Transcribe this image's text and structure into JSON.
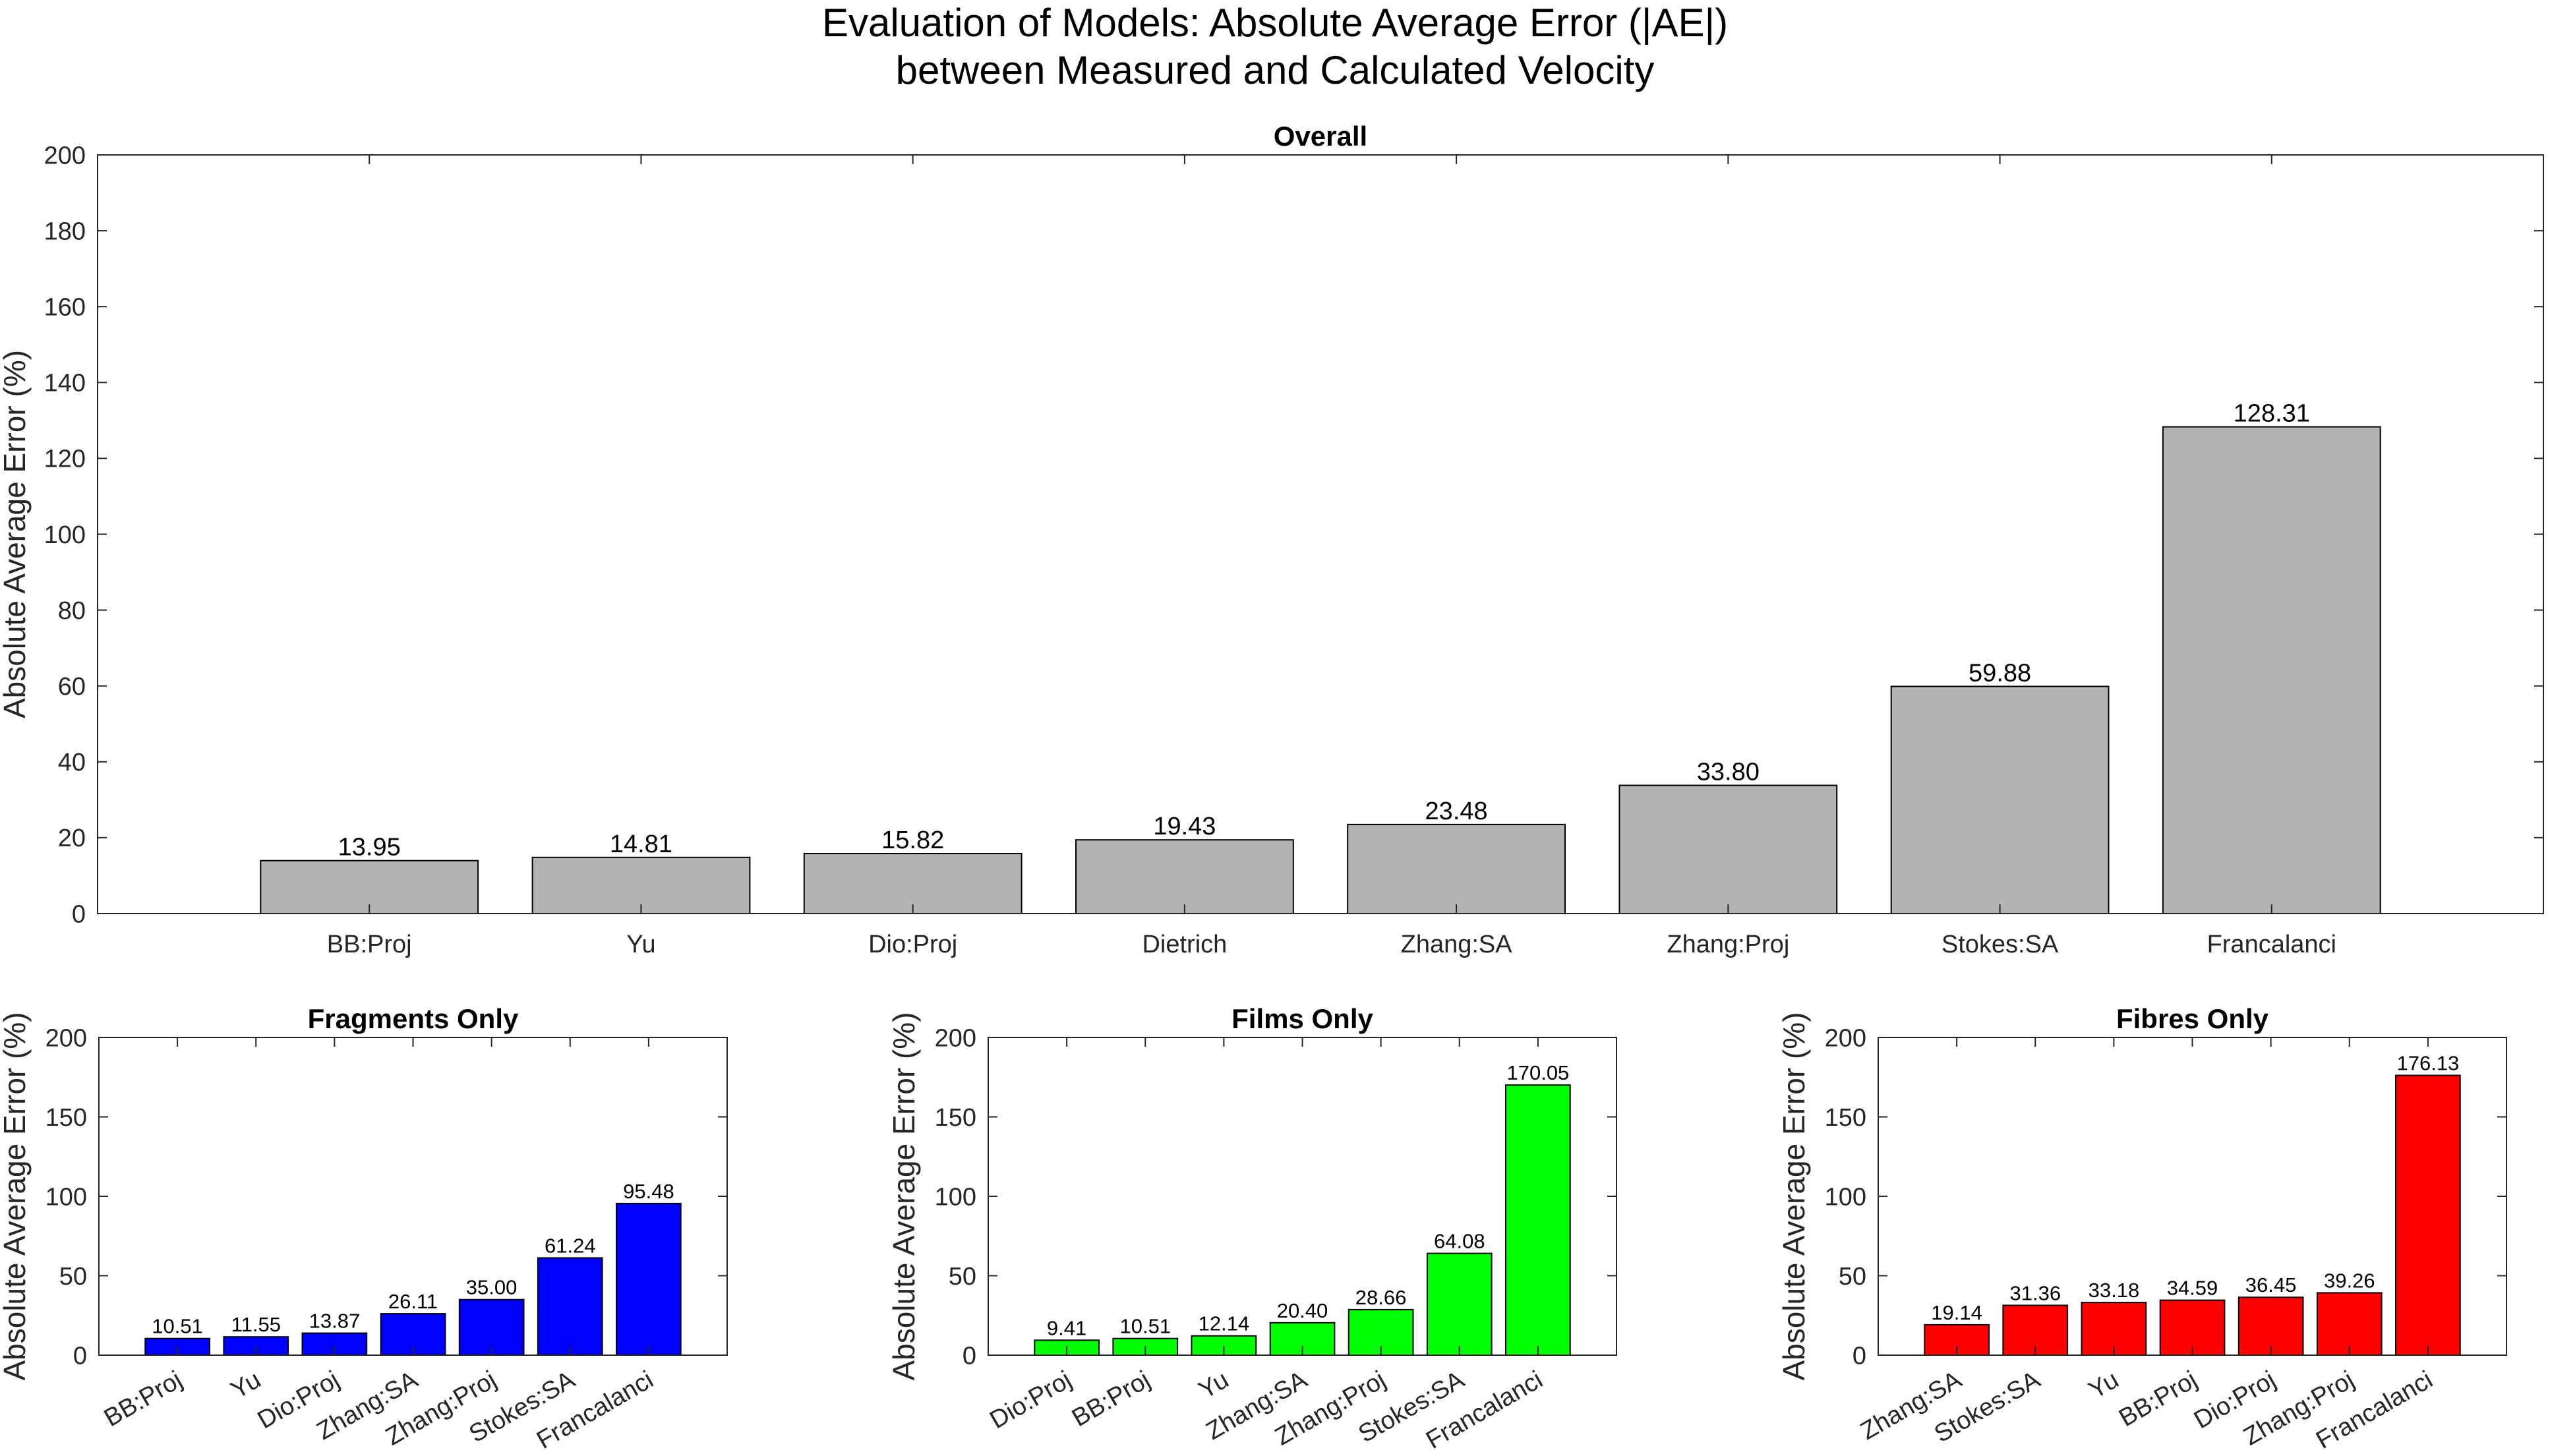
{
  "figure": {
    "title_line1": "Evaluation of Models: Absolute Average Error (|AE|)",
    "title_line2": "between Measured and Calculated Velocity"
  },
  "chart_data": [
    {
      "type": "bar",
      "title": "Overall",
      "ylabel": "Absolute Average Error (%)",
      "xlabel": "",
      "ylim": [
        0,
        200
      ],
      "yticks": [
        0,
        20,
        40,
        60,
        80,
        100,
        120,
        140,
        160,
        180,
        200
      ],
      "categories": [
        "BB:Proj",
        "Yu",
        "Dio:Proj",
        "Dietrich",
        "Zhang:SA",
        "Zhang:Proj",
        "Stokes:SA",
        "Francalanci"
      ],
      "values": [
        13.95,
        14.81,
        15.82,
        19.43,
        23.48,
        33.8,
        59.88,
        128.31
      ],
      "value_labels": [
        "13.95",
        "14.81",
        "15.82",
        "19.43",
        "23.48",
        "33.80",
        "59.88",
        "128.31"
      ],
      "color": "#b3b3b3",
      "tick_rotation": 0,
      "grid": false
    },
    {
      "type": "bar",
      "title": "Fragments Only",
      "ylabel": "Absolute Average Error (%)",
      "xlabel": "",
      "ylim": [
        0,
        200
      ],
      "yticks": [
        0,
        50,
        100,
        150,
        200
      ],
      "categories": [
        "BB:Proj",
        "Yu",
        "Dio:Proj",
        "Zhang:SA",
        "Zhang:Proj",
        "Stokes:SA",
        "Francalanci"
      ],
      "values": [
        10.51,
        11.55,
        13.87,
        26.11,
        35.0,
        61.24,
        95.48
      ],
      "value_labels": [
        "10.51",
        "11.55",
        "13.87",
        "26.11",
        "35.00",
        "61.24",
        "95.48"
      ],
      "color": "#0000ff",
      "tick_rotation": -30,
      "grid": false
    },
    {
      "type": "bar",
      "title": "Films Only",
      "ylabel": "Absolute Average Error (%)",
      "xlabel": "",
      "ylim": [
        0,
        200
      ],
      "yticks": [
        0,
        50,
        100,
        150,
        200
      ],
      "categories": [
        "Dio:Proj",
        "BB:Proj",
        "Yu",
        "Zhang:SA",
        "Zhang:Proj",
        "Stokes:SA",
        "Francalanci"
      ],
      "values": [
        9.41,
        10.51,
        12.14,
        20.4,
        28.66,
        64.08,
        170.05
      ],
      "value_labels": [
        "9.41",
        "10.51",
        "12.14",
        "20.40",
        "28.66",
        "64.08",
        "170.05"
      ],
      "color": "#00ff00",
      "tick_rotation": -30,
      "grid": false
    },
    {
      "type": "bar",
      "title": "Fibres Only",
      "ylabel": "Absolute Average Error (%)",
      "xlabel": "",
      "ylim": [
        0,
        200
      ],
      "yticks": [
        0,
        50,
        100,
        150,
        200
      ],
      "categories": [
        "Zhang:SA",
        "Stokes:SA",
        "Yu",
        "BB:Proj",
        "Dio:Proj",
        "Zhang:Proj",
        "Francalanci"
      ],
      "values": [
        19.14,
        31.36,
        33.18,
        34.59,
        36.45,
        39.26,
        176.13
      ],
      "value_labels": [
        "19.14",
        "31.36",
        "33.18",
        "34.59",
        "36.45",
        "39.26",
        "176.13"
      ],
      "color": "#ff0000",
      "tick_rotation": -30,
      "grid": false
    }
  ]
}
